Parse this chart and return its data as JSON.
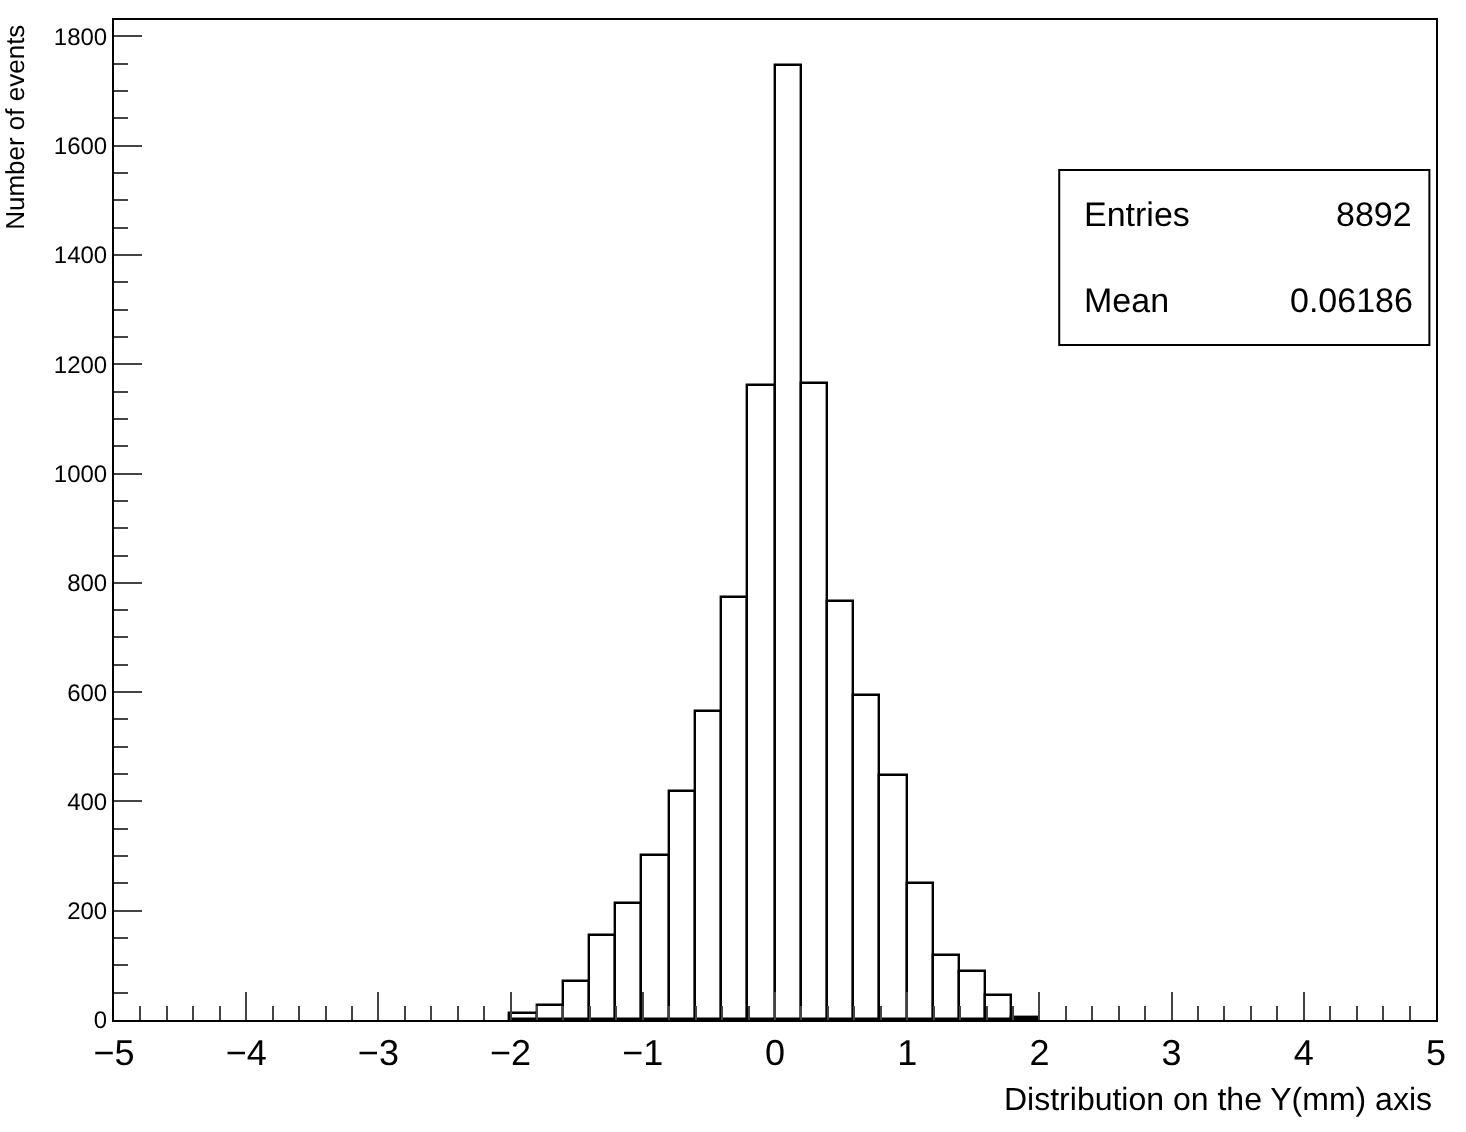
{
  "chart_data": {
    "type": "histogram",
    "xlabel": "Distribution on the Y(mm) axis",
    "ylabel": "Number of events",
    "bins": [
      -2.0,
      -1.8,
      -1.6,
      -1.4,
      -1.2,
      -1.0,
      -0.8,
      -0.6,
      -0.4,
      -0.2,
      0.0,
      0.2,
      0.4,
      0.6,
      0.8,
      1.0,
      1.2,
      1.4,
      1.6,
      1.8,
      2.0
    ],
    "values": [
      10,
      27,
      70,
      153,
      211,
      300,
      416,
      565,
      773,
      1159,
      1745,
      1163,
      766,
      592,
      447,
      248,
      116,
      89,
      43,
      5
    ],
    "color": "#000000",
    "xlim": [
      -5,
      5
    ],
    "xticks": [
      -5,
      -4,
      -3,
      -2,
      -1,
      0,
      1,
      2,
      3,
      4,
      5
    ],
    "ylim": [
      0,
      1830
    ],
    "yticks": [
      0,
      200,
      400,
      600,
      800,
      1000,
      1200,
      1400,
      1600,
      1800
    ],
    "annotations": [
      "Entries",
      "8892",
      "Mean",
      "0.06186"
    ]
  }
}
